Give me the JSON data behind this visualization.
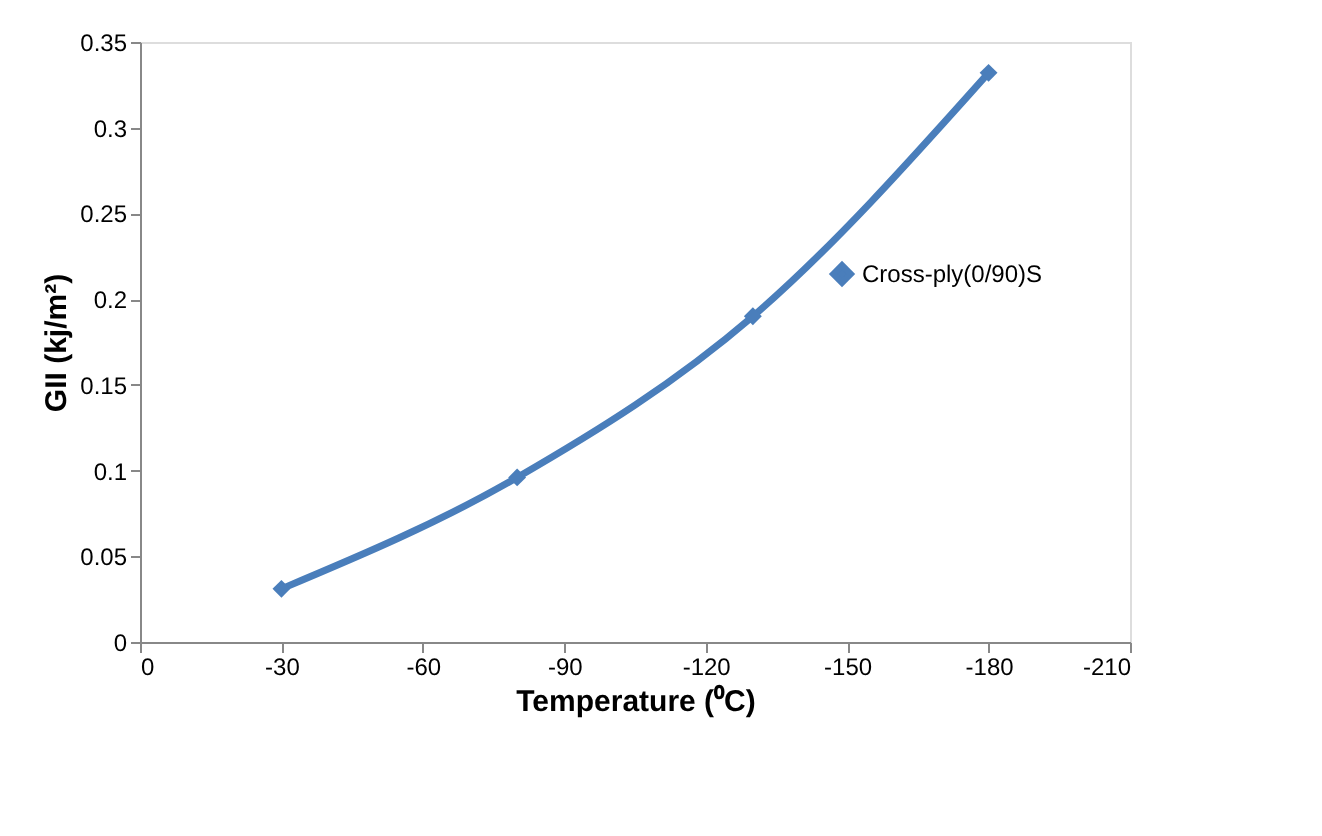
{
  "chart_data": {
    "type": "line",
    "xlabel": "Temperature (⁰C)",
    "ylabel": "GII (kj/m²)",
    "x": [
      -30,
      -80,
      -130,
      -180
    ],
    "series": [
      {
        "name": "Cross-ply(0/90)S",
        "color": "#4a7ebb",
        "values": [
          0.031,
          0.096,
          0.19,
          0.332
        ]
      }
    ],
    "xlim": [
      0,
      -210
    ],
    "xticks": [
      0,
      -30,
      -60,
      -90,
      -120,
      -150,
      -180,
      -210
    ],
    "ylim": [
      0,
      0.35
    ],
    "yticks": [
      0,
      0.05,
      0.1,
      0.15,
      0.2,
      0.25,
      0.3,
      0.35
    ],
    "grid": false,
    "legend": "right",
    "marker": "diamond",
    "line_style": "solid"
  }
}
